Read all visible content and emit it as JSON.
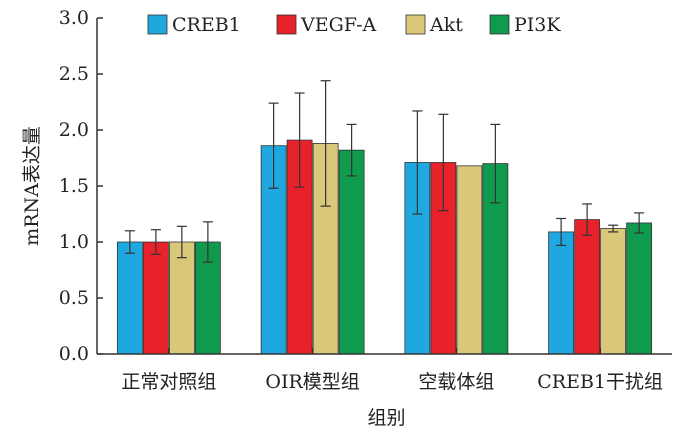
{
  "chart_data": {
    "type": "bar",
    "categories": [
      "正常对照组",
      "OIR模型组",
      "空载体组",
      "CREB1干扰组"
    ],
    "series": [
      {
        "name": "CREB1",
        "color": "#1fa8e0",
        "values": [
          1.0,
          1.86,
          1.71,
          1.09
        ],
        "errors": [
          0.1,
          0.38,
          0.46,
          0.12
        ]
      },
      {
        "name": "VEGF-A",
        "color": "#e8222a",
        "values": [
          1.0,
          1.91,
          1.71,
          1.2
        ],
        "errors": [
          0.11,
          0.42,
          0.43,
          0.14
        ]
      },
      {
        "name": "Akt",
        "color": "#d9c87a",
        "values": [
          1.0,
          1.88,
          1.68,
          1.12
        ],
        "errors": [
          0.14,
          0.56,
          0.0,
          0.03
        ]
      },
      {
        "name": "PI3K",
        "color": "#0f9a4e",
        "values": [
          1.0,
          1.82,
          1.7,
          1.17
        ],
        "errors": [
          0.18,
          0.23,
          0.35,
          0.09
        ]
      }
    ],
    "yticks": [
      "0.0",
      "0.5",
      "1.0",
      "1.5",
      "2.0",
      "2.5",
      "3.0"
    ],
    "ylim": [
      0,
      3
    ],
    "xlabel": "组别",
    "ylabel": "mRNA表达量",
    "title": "",
    "legend_position": "top",
    "grid": false,
    "error_bars": true
  }
}
